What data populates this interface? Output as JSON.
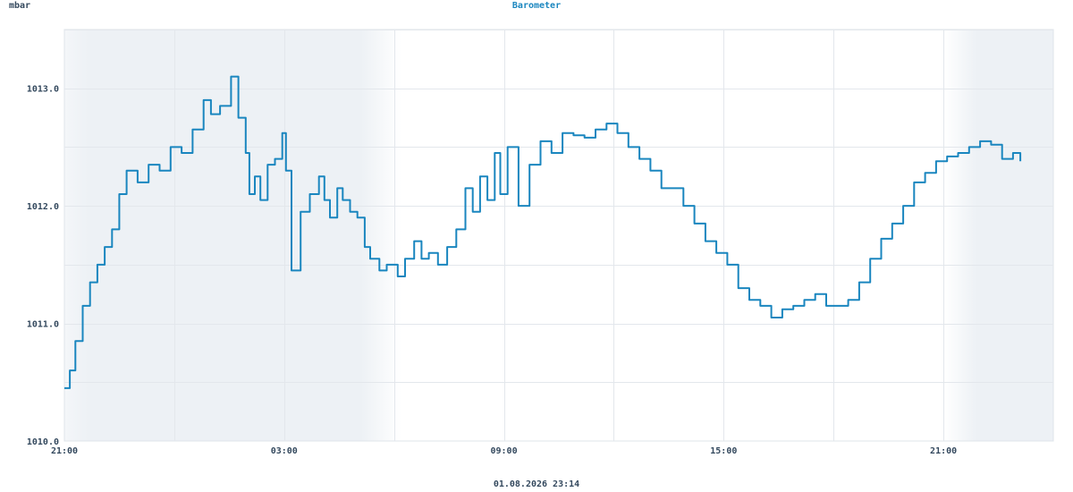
{
  "unit_label": "mbar",
  "footer_timestamp": "01.08.2026 23:14",
  "chart_data": {
    "type": "line",
    "title": "Barometer",
    "xlabel": "",
    "ylabel": "mbar",
    "x_unit": "hours since 21:00",
    "xlim": [
      0,
      27
    ],
    "ylim": [
      1010.0,
      1013.5
    ],
    "y_ticks": [
      {
        "value": 1010.0,
        "label": "1010.0"
      },
      {
        "value": 1011.0,
        "label": "1011.0"
      },
      {
        "value": 1012.0,
        "label": "1012.0"
      },
      {
        "value": 1013.0,
        "label": "1013.0"
      }
    ],
    "x_ticks": [
      {
        "value": 0,
        "label": "21:00"
      },
      {
        "value": 6,
        "label": "03:00"
      },
      {
        "value": 12,
        "label": "09:00"
      },
      {
        "value": 18,
        "label": "15:00"
      },
      {
        "value": 24,
        "label": "21:00"
      }
    ],
    "grid": true,
    "night_shading": [
      [
        0,
        9.2
      ],
      [
        24,
        27
      ]
    ],
    "series_color": "#1a86bf",
    "series": [
      {
        "name": "",
        "x": [
          0,
          0.15,
          0.3,
          0.5,
          0.7,
          0.9,
          1.1,
          1.3,
          1.5,
          1.7,
          2.0,
          2.3,
          2.6,
          2.9,
          3.2,
          3.5,
          3.8,
          4.0,
          4.25,
          4.55,
          4.75,
          4.95,
          5.05,
          5.2,
          5.35,
          5.55,
          5.75,
          5.95,
          6.05,
          6.2,
          6.45,
          6.7,
          6.95,
          7.1,
          7.25,
          7.45,
          7.6,
          7.8,
          8.0,
          8.2,
          8.35,
          8.6,
          8.8,
          9.1,
          9.3,
          9.55,
          9.75,
          9.95,
          10.2,
          10.45,
          10.7,
          10.95,
          11.15,
          11.35,
          11.55,
          11.75,
          11.9,
          12.1,
          12.4,
          12.7,
          13.0,
          13.3,
          13.6,
          13.9,
          14.2,
          14.5,
          14.8,
          15.1,
          15.4,
          15.7,
          16.0,
          16.3,
          16.6,
          16.9,
          17.2,
          17.5,
          17.8,
          18.1,
          18.4,
          18.7,
          19.0,
          19.3,
          19.6,
          19.9,
          20.2,
          20.5,
          20.8,
          21.1,
          21.4,
          21.7,
          22.0,
          22.3,
          22.6,
          22.9,
          23.2,
          23.5,
          23.8,
          24.1,
          24.4,
          24.7,
          25.0,
          25.3,
          25.6,
          25.9,
          26.1
        ],
        "values": [
          1010.45,
          1010.6,
          1010.85,
          1011.15,
          1011.35,
          1011.5,
          1011.65,
          1011.8,
          1012.1,
          1012.3,
          1012.2,
          1012.35,
          1012.3,
          1012.5,
          1012.45,
          1012.65,
          1012.9,
          1012.78,
          1012.85,
          1013.1,
          1012.75,
          1012.45,
          1012.1,
          1012.25,
          1012.05,
          1012.35,
          1012.4,
          1012.62,
          1012.3,
          1011.45,
          1011.95,
          1012.1,
          1012.25,
          1012.05,
          1011.9,
          1012.15,
          1012.05,
          1011.95,
          1011.9,
          1011.65,
          1011.55,
          1011.45,
          1011.5,
          1011.4,
          1011.55,
          1011.7,
          1011.55,
          1011.6,
          1011.5,
          1011.65,
          1011.8,
          1012.15,
          1011.95,
          1012.25,
          1012.05,
          1012.45,
          1012.1,
          1012.5,
          1012.0,
          1012.35,
          1012.55,
          1012.45,
          1012.62,
          1012.6,
          1012.58,
          1012.65,
          1012.7,
          1012.62,
          1012.5,
          1012.4,
          1012.3,
          1012.15,
          1012.15,
          1012.0,
          1011.85,
          1011.7,
          1011.6,
          1011.5,
          1011.3,
          1011.2,
          1011.15,
          1011.05,
          1011.12,
          1011.15,
          1011.2,
          1011.25,
          1011.15,
          1011.15,
          1011.2,
          1011.35,
          1011.55,
          1011.72,
          1011.85,
          1012.0,
          1012.2,
          1012.28,
          1012.38,
          1012.42,
          1012.45,
          1012.5,
          1012.55,
          1012.52,
          1012.4,
          1012.45,
          1012.38
        ]
      }
    ]
  }
}
